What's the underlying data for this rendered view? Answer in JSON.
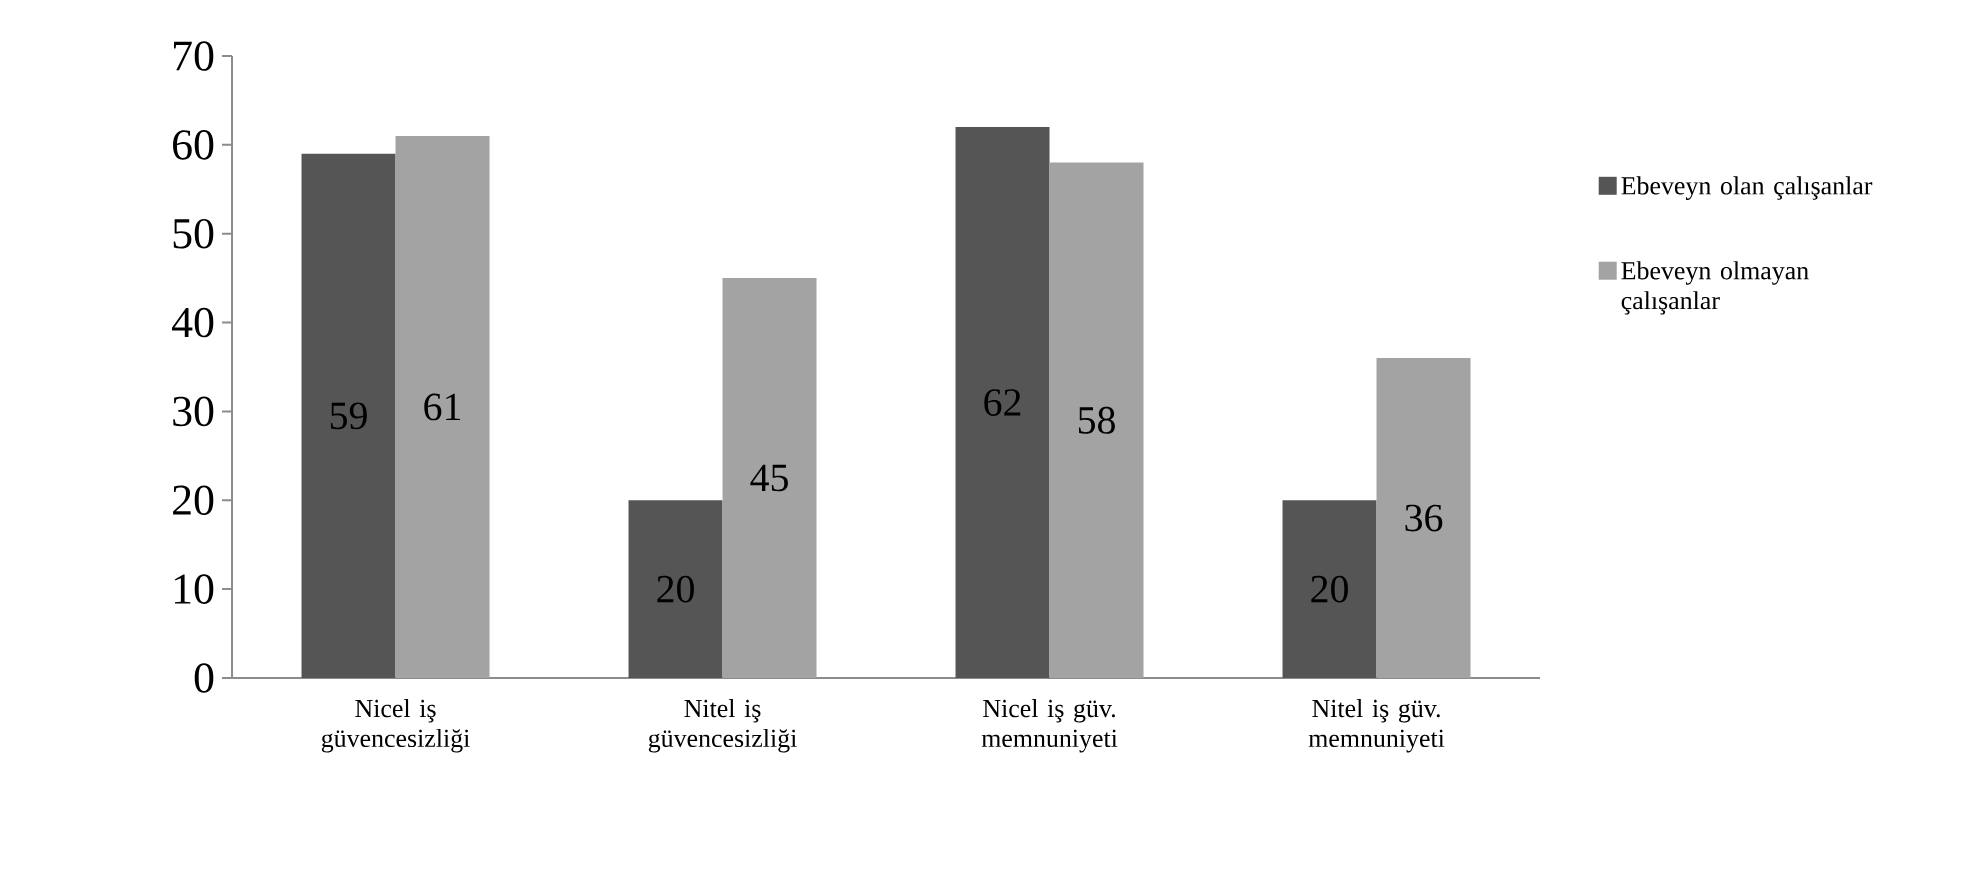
{
  "chart_data": {
    "type": "bar",
    "categories": [
      "Nicel iş güvencesizliği",
      "Nitel iş güvencesizliği",
      "Nicel iş güv. memnuniyeti",
      "Nitel iş güv. memnuniyeti"
    ],
    "series": [
      {
        "name": "Ebeveyn olan çalışanlar",
        "color": "#555555",
        "values": [
          59,
          20,
          62,
          20
        ]
      },
      {
        "name": "Ebeveyn olmayan çalışanlar",
        "color": "#a3a3a3",
        "values": [
          61,
          45,
          58,
          36
        ]
      }
    ],
    "ylim": [
      0,
      70
    ],
    "yticks": [
      0,
      10,
      20,
      30,
      40,
      50,
      60,
      70
    ],
    "data_labels": true,
    "legend": "right",
    "grid": false
  }
}
